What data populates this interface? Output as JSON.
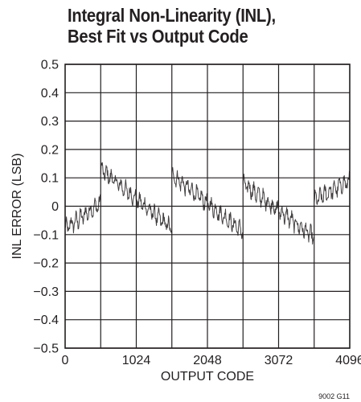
{
  "chart_data": {
    "type": "line",
    "title_line1": "Integral Non-Linearity (INL),",
    "title_line2": "Best Fit vs Output Code",
    "xlabel": "OUTPUT CODE",
    "ylabel": "INL ERROR (LSB)",
    "xlim": [
      0,
      4096
    ],
    "ylim": [
      -0.5,
      0.5
    ],
    "x_ticks": [
      0,
      1024,
      2048,
      3072,
      4096
    ],
    "x_tick_labels": [
      "0",
      "1024",
      "2048",
      "3072",
      "4096"
    ],
    "y_ticks": [
      0.5,
      0.4,
      0.3,
      0.2,
      0.1,
      0,
      -0.1,
      -0.2,
      -0.3,
      -0.4,
      -0.5
    ],
    "y_tick_labels": [
      "0.5",
      "0.4",
      "0.3",
      "0.2",
      "0.1",
      "0",
      "−0.1",
      "−0.2",
      "−0.3",
      "−0.4",
      "−0.5"
    ],
    "grid": true,
    "segments": [
      {
        "x0": 0,
        "x1": 512,
        "y0": -0.08,
        "y1": 0.01
      },
      {
        "x0": 512,
        "x1": 1536,
        "y0": 0.13,
        "y1": -0.08
      },
      {
        "x0": 1536,
        "x1": 2560,
        "y0": 0.11,
        "y1": -0.09
      },
      {
        "x0": 2560,
        "x1": 3584,
        "y0": 0.08,
        "y1": -0.11
      },
      {
        "x0": 3584,
        "x1": 4096,
        "y0": 0.02,
        "y1": 0.09
      }
    ],
    "color": "#231f20"
  },
  "footer_code": "9002 G11"
}
